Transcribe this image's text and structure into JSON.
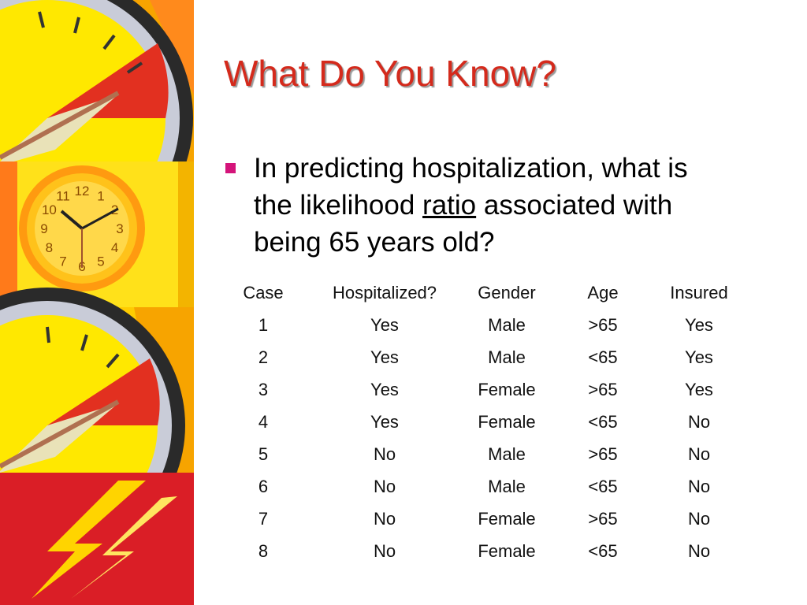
{
  "slide": {
    "title": "What Do You Know?",
    "bullet": {
      "before": "In predicting hospitalization, what is the likelihood ",
      "emphasis": "ratio",
      "after": " associated with being 65 years old?"
    },
    "table": {
      "headers": [
        "Case",
        "Hospitalized?",
        "Gender",
        "Age",
        "Insured"
      ],
      "rows": [
        [
          "1",
          "Yes",
          "Male",
          ">65",
          "Yes"
        ],
        [
          "2",
          "Yes",
          "Male",
          "<65",
          "Yes"
        ],
        [
          "3",
          "Yes",
          "Female",
          ">65",
          "Yes"
        ],
        [
          "4",
          "Yes",
          "Female",
          "<65",
          "No"
        ],
        [
          "5",
          "No",
          "Male",
          ">65",
          "No"
        ],
        [
          "6",
          "No",
          "Male",
          "<65",
          "No"
        ],
        [
          "7",
          "No",
          "Female",
          ">65",
          "No"
        ],
        [
          "8",
          "No",
          "Female",
          "<65",
          "No"
        ]
      ]
    },
    "decor": {
      "icons": [
        "gauge-icon",
        "clock-icon",
        "gauge-icon",
        "lightning-icon"
      ],
      "clock_numerals": [
        "12",
        "1",
        "2",
        "3",
        "4",
        "5",
        "6",
        "7",
        "8",
        "9",
        "10",
        "11"
      ]
    },
    "colors": {
      "title": "#d42a1c",
      "bullet": "#d4147a"
    }
  }
}
